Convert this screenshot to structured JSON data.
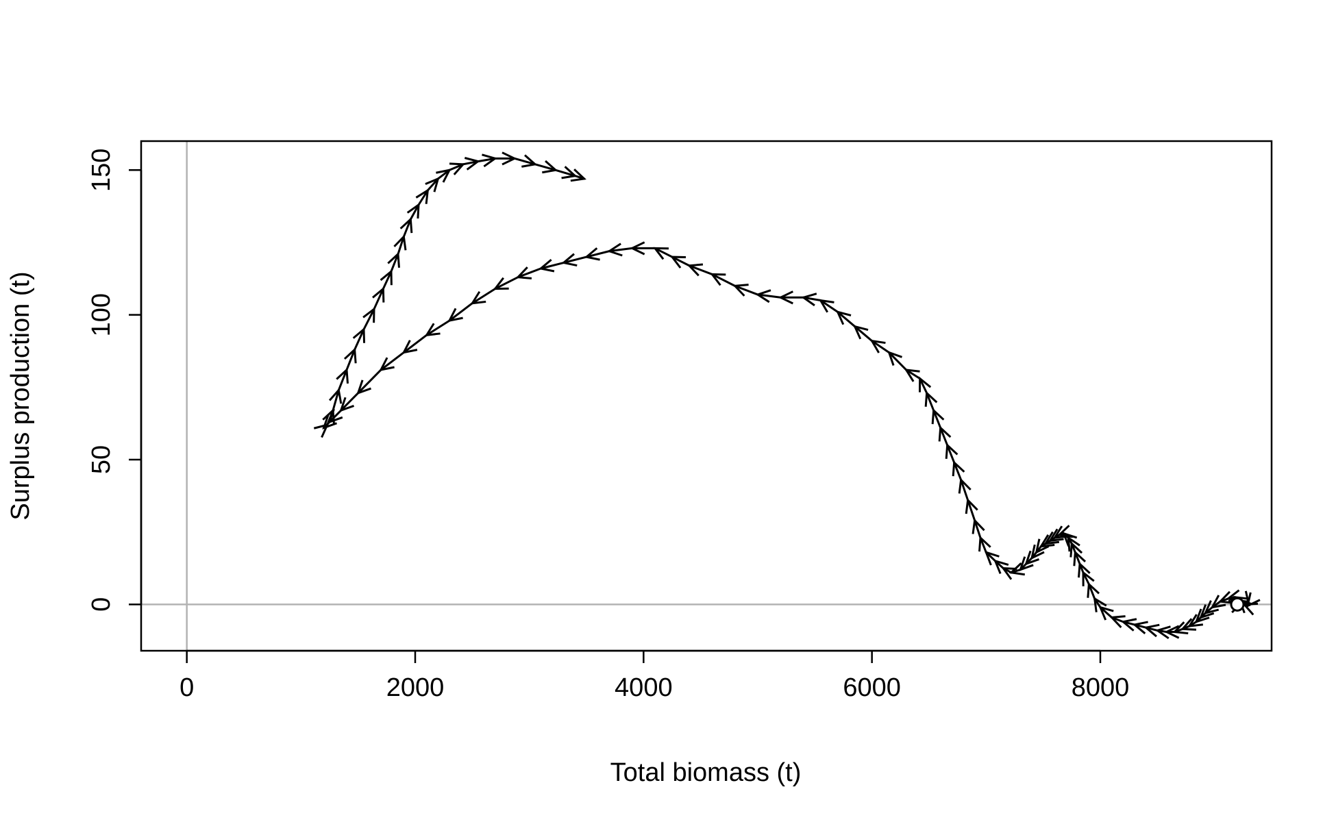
{
  "chart_data": {
    "type": "line",
    "title": "",
    "xlabel": "Total biomass (t)",
    "ylabel": "Surplus production (t)",
    "xlim": [
      -400,
      9500
    ],
    "ylim": [
      -16,
      160
    ],
    "x_ticks": [
      0,
      2000,
      4000,
      6000,
      8000
    ],
    "y_ticks": [
      0,
      50,
      100,
      150
    ],
    "reference_lines": {
      "x": 0,
      "y": 0,
      "color": "#b3b3b3"
    },
    "line_color": "#000000",
    "arrows": true,
    "grid": false,
    "legend": "none",
    "start_marker": "open-circle",
    "series": [
      {
        "x": [
          9200,
          9240,
          9280,
          9300,
          9290,
          9260,
          9220,
          9180,
          9120,
          9050,
          8980,
          8920,
          8880,
          8840,
          8780,
          8720,
          8650,
          8580,
          8500,
          8400,
          8300,
          8200,
          8100,
          8000,
          7950,
          7900,
          7850,
          7820,
          7780,
          7750,
          7720,
          7680,
          7640,
          7600,
          7560,
          7520,
          7480,
          7440,
          7400,
          7350,
          7300,
          7220,
          7150,
          7080,
          7000,
          6950,
          6900,
          6840,
          6780,
          6720,
          6660,
          6600,
          6540,
          6480,
          6420,
          6300,
          6150,
          6000,
          5850,
          5700,
          5550,
          5400,
          5200,
          5000,
          4800,
          4600,
          4400,
          4250,
          4100,
          3900,
          3700,
          3500,
          3300,
          3100,
          2900,
          2700,
          2500,
          2300,
          2100,
          1900,
          1700,
          1500,
          1350,
          1250,
          1200,
          1230,
          1280,
          1330,
          1400,
          1470,
          1550,
          1640,
          1720,
          1790,
          1850,
          1900,
          1960,
          2030,
          2110,
          2200,
          2300,
          2420,
          2550,
          2700,
          2870,
          3050,
          3230,
          3400,
          3480
        ],
        "y": [
          0,
          0.5,
          1,
          0,
          -0.5,
          0,
          1.5,
          2.5,
          2,
          1,
          -1,
          -3,
          -4.5,
          -6,
          -7.5,
          -8.5,
          -9.5,
          -9.5,
          -9,
          -8,
          -7,
          -6,
          -4.5,
          -1,
          2,
          7,
          11,
          14,
          18,
          21,
          23,
          24.5,
          24,
          23,
          22,
          21,
          20,
          18,
          16,
          14,
          12,
          11,
          12.5,
          15,
          18,
          23,
          29,
          36,
          43,
          49,
          55,
          61,
          67,
          73,
          78,
          81,
          87,
          91,
          96,
          101,
          105,
          106,
          106,
          107,
          110,
          114,
          117,
          120,
          123,
          123,
          122,
          120,
          118,
          116,
          113,
          109,
          104,
          98,
          93,
          87,
          81,
          73,
          67,
          63,
          61,
          62,
          67,
          74,
          81,
          88,
          95,
          102,
          109,
          115,
          121,
          127,
          133,
          138,
          143,
          147,
          150,
          152,
          153,
          154,
          154,
          152,
          150,
          148,
          147
        ]
      }
    ]
  }
}
